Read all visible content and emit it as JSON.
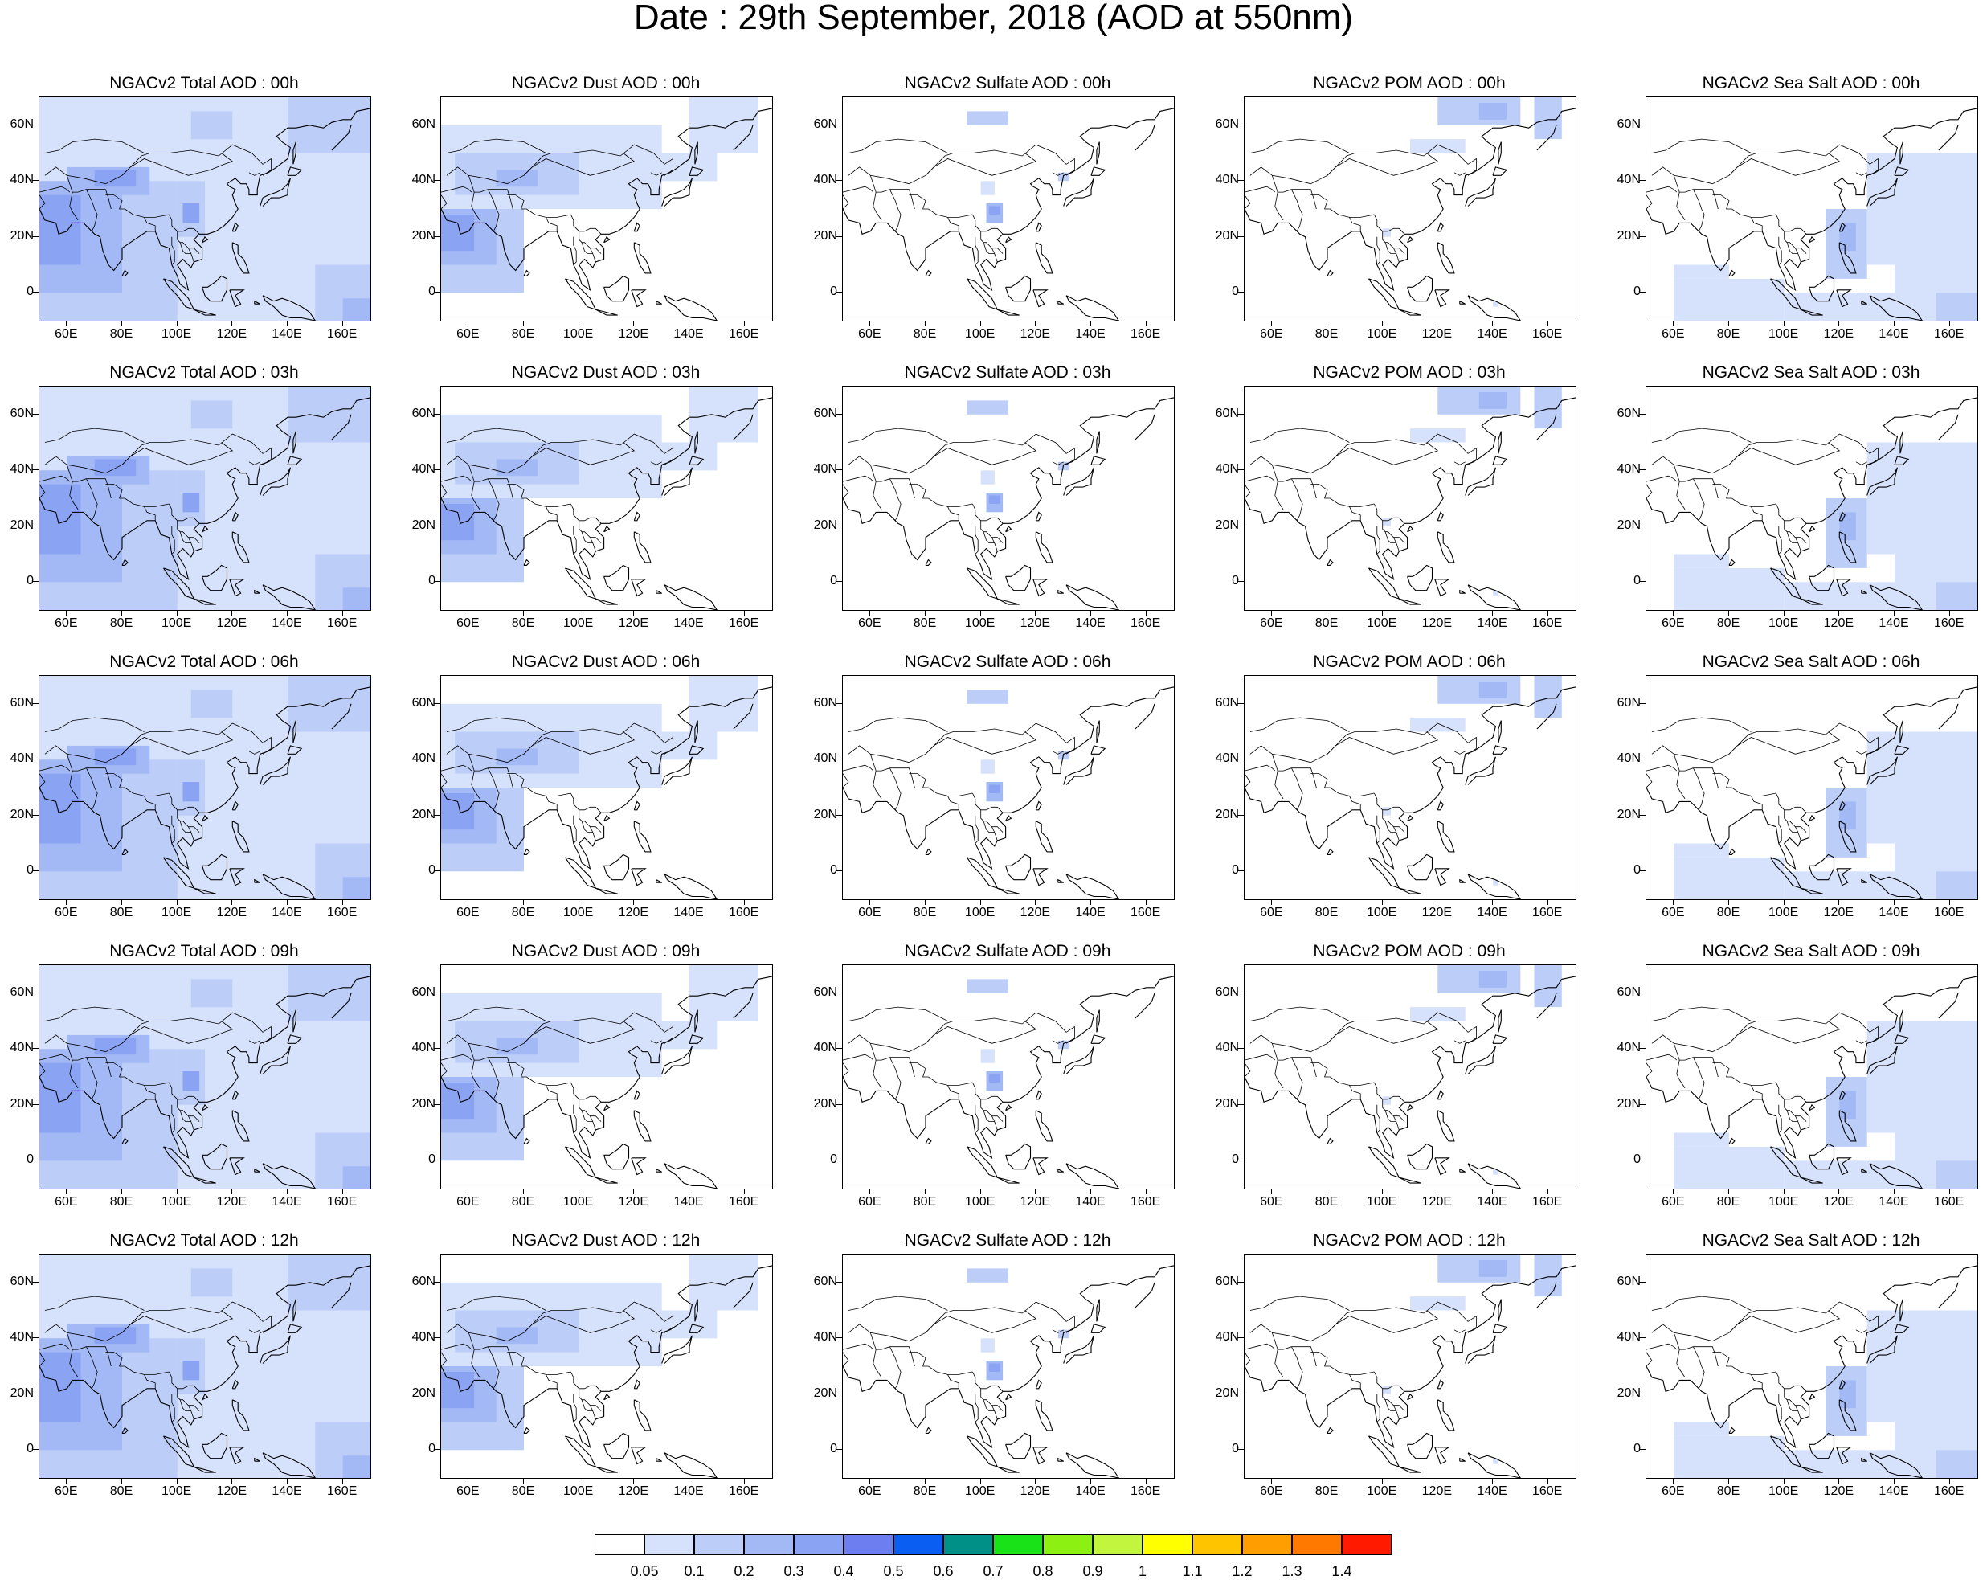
{
  "title": "Date : 29th September, 2018 (AOD at 550nm)",
  "panel_titles": [
    [
      "NGACv2 Total AOD : 00h",
      "NGACv2 Dust AOD : 00h",
      "NGACv2 Sulfate AOD : 00h",
      "NGACv2 POM AOD : 00h",
      "NGACv2 Sea Salt AOD : 00h"
    ],
    [
      "NGACv2 Total AOD : 03h",
      "NGACv2 Dust AOD : 03h",
      "NGACv2 Sulfate AOD : 03h",
      "NGACv2 POM AOD : 03h",
      "NGACv2 Sea Salt AOD : 03h"
    ],
    [
      "NGACv2 Total AOD : 06h",
      "NGACv2 Dust AOD : 06h",
      "NGACv2 Sulfate AOD : 06h",
      "NGACv2 POM AOD : 06h",
      "NGACv2 Sea Salt AOD : 06h"
    ],
    [
      "NGACv2 Total AOD : 09h",
      "NGACv2 Dust AOD : 09h",
      "NGACv2 Sulfate AOD : 09h",
      "NGACv2 POM AOD : 09h",
      "NGACv2 Sea Salt  AOD : 09h"
    ],
    [
      "NGACv2 Total AOD  : 12h",
      "NGACv2 Dust AOD : 12h",
      "NGACv2 Sulfate AOD : 12h",
      "NGACv2 POM  AOD : 12h",
      "NGACv2 Sea Salt  AOD : 12h"
    ]
  ],
  "map": {
    "lon_range": [
      50,
      170
    ],
    "lat_range": [
      -10,
      70
    ],
    "lat_ticks": [
      0,
      20,
      40,
      60
    ],
    "lat_labels": [
      "0",
      "20N",
      "40N",
      "60N"
    ],
    "lon_ticks": [
      60,
      80,
      100,
      120,
      140,
      160
    ],
    "lon_labels": [
      "60E",
      "80E",
      "100E",
      "120E",
      "140E",
      "160E"
    ]
  },
  "colorbar": {
    "labels": [
      "0.05",
      "0.1",
      "0.2",
      "0.3",
      "0.4",
      "0.5",
      "0.6",
      "0.7",
      "0.8",
      "0.9",
      "1",
      "1.1",
      "1.2",
      "1.3",
      "1.4"
    ],
    "colors": [
      "#ffffff",
      "#d6e2fb",
      "#bccdf8",
      "#a3b9f6",
      "#8aa4f3",
      "#6d7ff0",
      "#0a5ff2",
      "#009088",
      "#19e219",
      "#8cf013",
      "#c2f53d",
      "#ffff00",
      "#ffc400",
      "#ff9e00",
      "#ff7800",
      "#ff1a00"
    ]
  }
}
